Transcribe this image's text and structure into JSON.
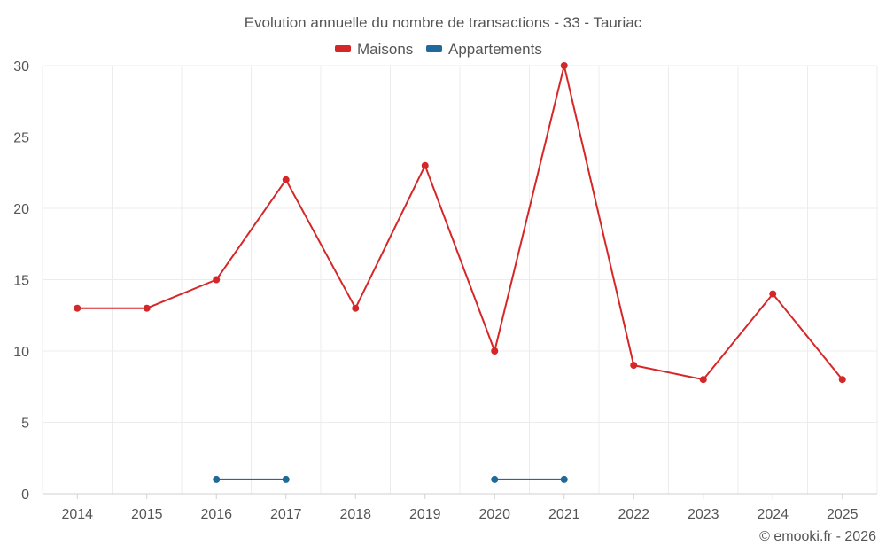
{
  "chart_data": {
    "type": "line",
    "title": "Evolution annuelle du nombre de transactions - 33 - Tauriac",
    "categories": [
      "2014",
      "2015",
      "2016",
      "2017",
      "2018",
      "2019",
      "2020",
      "2021",
      "2022",
      "2023",
      "2024",
      "2025"
    ],
    "series": [
      {
        "name": "Maisons",
        "color": "#d62728",
        "values": [
          13,
          13,
          15,
          22,
          13,
          23,
          10,
          30,
          9,
          8,
          14,
          8
        ]
      },
      {
        "name": "Appartements",
        "color": "#1f6a9a",
        "values": [
          null,
          null,
          1,
          1,
          null,
          null,
          1,
          1,
          null,
          null,
          null,
          null
        ]
      }
    ],
    "ylim": [
      0,
      30
    ],
    "yticks": [
      0,
      5,
      10,
      15,
      20,
      25,
      30
    ],
    "grid": true,
    "legend": "top-center"
  },
  "credit": "© emooki.fr - 2026"
}
